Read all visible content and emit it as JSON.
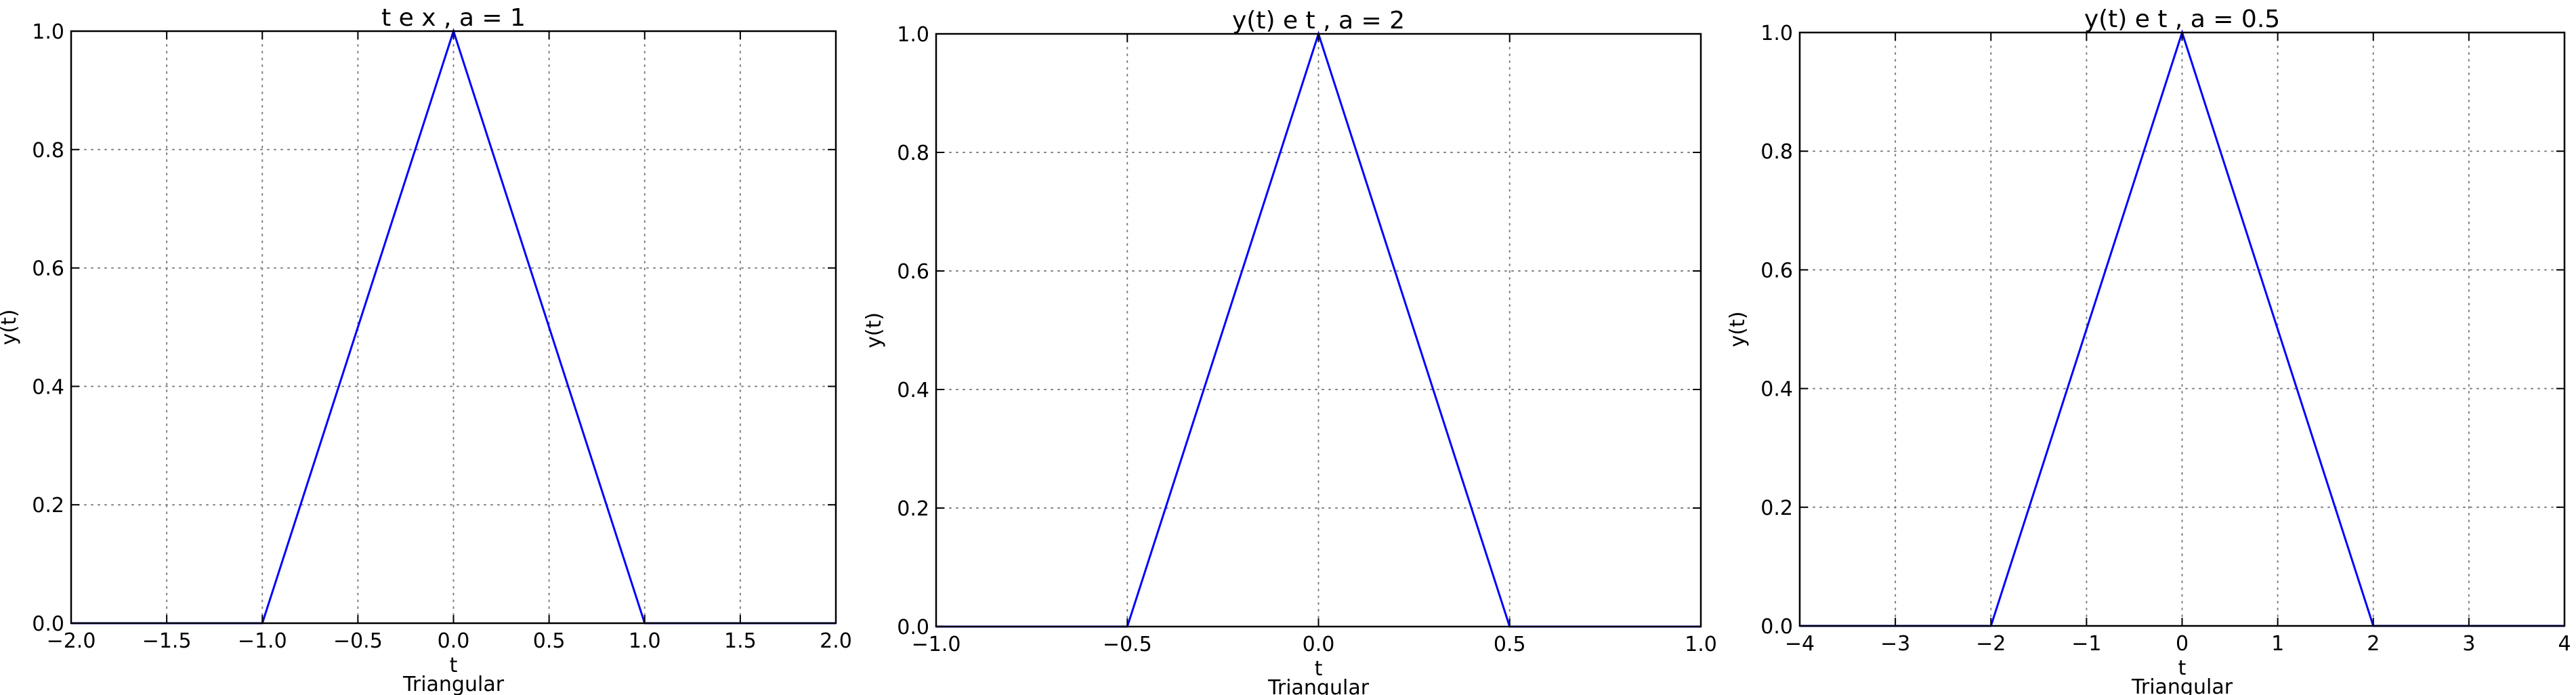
{
  "chart_data": [
    {
      "type": "line",
      "title": "t e x , a = 1",
      "xlabel": "t",
      "ylabel": "y(t)",
      "caption": "Triangular",
      "xlim": [
        -2.0,
        2.0
      ],
      "ylim": [
        0.0,
        1.0
      ],
      "grid": true,
      "x_ticks": [
        -2.0,
        -1.5,
        -1.0,
        -0.5,
        0.0,
        0.5,
        1.0,
        1.5,
        2.0
      ],
      "x_tick_labels": [
        "−2.0",
        "−1.5",
        "−1.0",
        "−0.5",
        "0.0",
        "0.5",
        "1.0",
        "1.5",
        "2.0"
      ],
      "y_ticks": [
        0.0,
        0.2,
        0.4,
        0.6,
        0.8,
        1.0
      ],
      "y_tick_labels": [
        "0.0",
        "0.2",
        "0.4",
        "0.6",
        "0.8",
        "1.0"
      ],
      "series": [
        {
          "color": "#0000ff",
          "x": [
            -2.0,
            -1.0,
            0.0,
            1.0,
            2.0
          ],
          "y": [
            0.0,
            0.0,
            1.0,
            0.0,
            0.0
          ]
        }
      ]
    },
    {
      "type": "line",
      "title": "y(t) e t , a = 2",
      "xlabel": "t",
      "ylabel": "y(t)",
      "caption": "Triangular",
      "xlim": [
        -1.0,
        1.0
      ],
      "ylim": [
        0.0,
        1.0
      ],
      "grid": true,
      "x_ticks": [
        -1.0,
        -0.5,
        0.0,
        0.5,
        1.0
      ],
      "x_tick_labels": [
        "−1.0",
        "−0.5",
        "0.0",
        "0.5",
        "1.0"
      ],
      "y_ticks": [
        0.0,
        0.2,
        0.4,
        0.6,
        0.8,
        1.0
      ],
      "y_tick_labels": [
        "0.0",
        "0.2",
        "0.4",
        "0.6",
        "0.8",
        "1.0"
      ],
      "series": [
        {
          "color": "#0000ff",
          "x": [
            -1.0,
            -0.5,
            0.0,
            0.5,
            1.0
          ],
          "y": [
            0.0,
            0.0,
            1.0,
            0.0,
            0.0
          ]
        }
      ]
    },
    {
      "type": "line",
      "title": "y(t) e t , a = 0.5",
      "xlabel": "t",
      "ylabel": "y(t)",
      "caption": "Triangular",
      "xlim": [
        -4,
        4
      ],
      "ylim": [
        0.0,
        1.0
      ],
      "grid": true,
      "x_ticks": [
        -4,
        -3,
        -2,
        -1,
        0,
        1,
        2,
        3,
        4
      ],
      "x_tick_labels": [
        "−4",
        "−3",
        "−2",
        "−1",
        "0",
        "1",
        "2",
        "3",
        "4"
      ],
      "y_ticks": [
        0.0,
        0.2,
        0.4,
        0.6,
        0.8,
        1.0
      ],
      "y_tick_labels": [
        "0.0",
        "0.2",
        "0.4",
        "0.6",
        "0.8",
        "1.0"
      ],
      "series": [
        {
          "color": "#0000ff",
          "x": [
            -4,
            -2,
            0,
            2,
            4
          ],
          "y": [
            0.0,
            0.0,
            1.0,
            0.0,
            0.0
          ]
        }
      ]
    }
  ]
}
